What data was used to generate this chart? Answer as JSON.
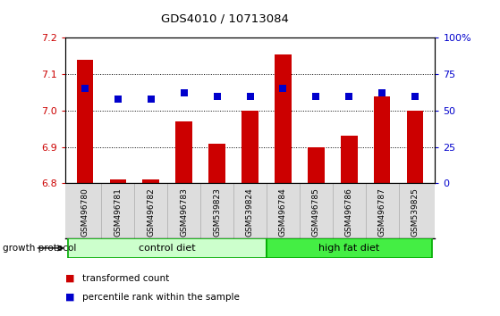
{
  "title": "GDS4010 / 10713084",
  "samples": [
    "GSM496780",
    "GSM496781",
    "GSM496782",
    "GSM496783",
    "GSM539823",
    "GSM539824",
    "GSM496784",
    "GSM496785",
    "GSM496786",
    "GSM496787",
    "GSM539825"
  ],
  "red_values": [
    7.14,
    6.81,
    6.81,
    6.97,
    6.91,
    7.0,
    7.155,
    6.9,
    6.93,
    7.04,
    7.0
  ],
  "blue_values": [
    65,
    58,
    58,
    62,
    60,
    60,
    65,
    60,
    60,
    62,
    60
  ],
  "ylim_left": [
    6.8,
    7.2
  ],
  "ylim_right": [
    0,
    100
  ],
  "yticks_left": [
    6.8,
    6.9,
    7.0,
    7.1,
    7.2
  ],
  "yticks_right": [
    0,
    25,
    50,
    75,
    100
  ],
  "ytick_labels_right": [
    "0",
    "25",
    "50",
    "75",
    "100%"
  ],
  "bar_color": "#cc0000",
  "dot_color": "#0000cc",
  "n_control": 6,
  "n_high_fat": 5,
  "control_color_light": "#ccffcc",
  "control_color_border": "#00aa00",
  "high_fat_color_light": "#44ee44",
  "high_fat_color_border": "#00aa00",
  "control_label": "control diet",
  "high_fat_label": "high fat diet",
  "growth_protocol_label": "growth protocol",
  "legend_red_label": "transformed count",
  "legend_blue_label": "percentile rank within the sample",
  "left_tick_color": "#cc0000",
  "right_tick_color": "#0000cc",
  "bar_width": 0.5,
  "dot_size": 35,
  "plot_bg_color": "#ffffff"
}
